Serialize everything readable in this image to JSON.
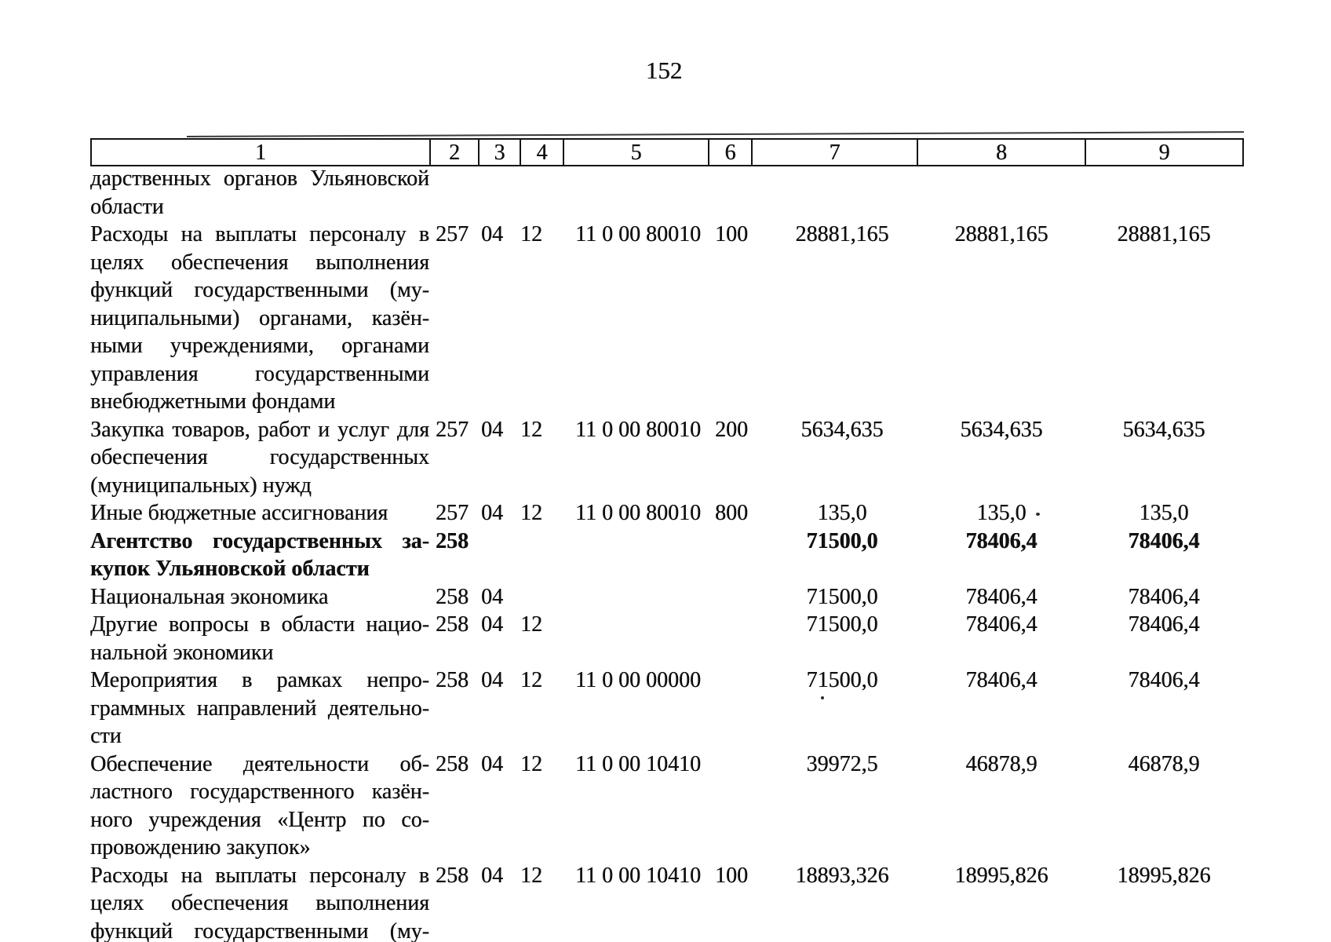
{
  "page": {
    "number": "152"
  },
  "colors": {
    "ink": "#101010",
    "paper": "#ffffff"
  },
  "table": {
    "header": [
      "1",
      "2",
      "3",
      "4",
      "5",
      "6",
      "7",
      "8",
      "9"
    ],
    "rows": [
      {
        "label_lines": [
          "дарственных органов Ульяновской",
          "области"
        ],
        "bold": false,
        "cells": [
          "",
          "",
          "",
          "",
          "",
          "",
          "",
          ""
        ]
      },
      {
        "label_lines": [
          "Расходы на выплаты персоналу в",
          "целях обеспечения выполнения",
          "функций государственными (му-",
          "ниципальными) органами, казён-",
          "ными учреждениями, органами",
          "управления государственными",
          "внебюджетными фондами"
        ],
        "bold": false,
        "cells": [
          "257",
          "04",
          "12",
          "11 0 00 80010",
          "100",
          "28881,165",
          "28881,165",
          "28881,165"
        ]
      },
      {
        "label_lines": [
          "Закупка товаров, работ и услуг для",
          "обеспечения государственных",
          "(муниципальных) нужд"
        ],
        "bold": false,
        "cells": [
          "257",
          "04",
          "12",
          "11 0 00 80010",
          "200",
          "5634,635",
          "5634,635",
          "5634,635"
        ]
      },
      {
        "label_lines": [
          "Иные бюджетные ассигнования"
        ],
        "bold": false,
        "cells": [
          "257",
          "04",
          "12",
          "11 0 00 80010",
          "800",
          "135,0",
          "135,0",
          "135,0"
        ]
      },
      {
        "label_lines": [
          "Агентство государственных за-",
          "купок Ульяновской области"
        ],
        "bold": true,
        "cells": [
          "258",
          "",
          "",
          "",
          "",
          "71500,0",
          "78406,4",
          "78406,4"
        ]
      },
      {
        "label_lines": [
          "Национальная экономика"
        ],
        "bold": false,
        "cells": [
          "258",
          "04",
          "",
          "",
          "",
          "71500,0",
          "78406,4",
          "78406,4"
        ]
      },
      {
        "label_lines": [
          "Другие вопросы в области нацио-",
          "нальной экономики"
        ],
        "bold": false,
        "cells": [
          "258",
          "04",
          "12",
          "",
          "",
          "71500,0",
          "78406,4",
          "78406,4"
        ]
      },
      {
        "label_lines": [
          "Мероприятия в рамках непро-",
          "граммных направлений деятельно-",
          "сти"
        ],
        "bold": false,
        "cells": [
          "258",
          "04",
          "12",
          "11 0 00 00000",
          "",
          "71500,0",
          "78406,4",
          "78406,4"
        ]
      },
      {
        "label_lines": [
          "Обеспечение деятельности об-",
          "ластного государственного казён-",
          "ного учреждения «Центр по со-",
          "провождению закупок»"
        ],
        "bold": false,
        "cells": [
          "258",
          "04",
          "12",
          "11 0 00 10410",
          "",
          "39972,5",
          "46878,9",
          "46878,9"
        ]
      },
      {
        "label_lines": [
          "Расходы на выплаты персоналу в",
          "целях обеспечения выполнения",
          "функций государственными (му-"
        ],
        "bold": false,
        "justify_all": true,
        "cells": [
          "258",
          "04",
          "12",
          "11 0 00 10410",
          "100",
          "18893,326",
          "18995,826",
          "18995,826"
        ]
      }
    ]
  }
}
